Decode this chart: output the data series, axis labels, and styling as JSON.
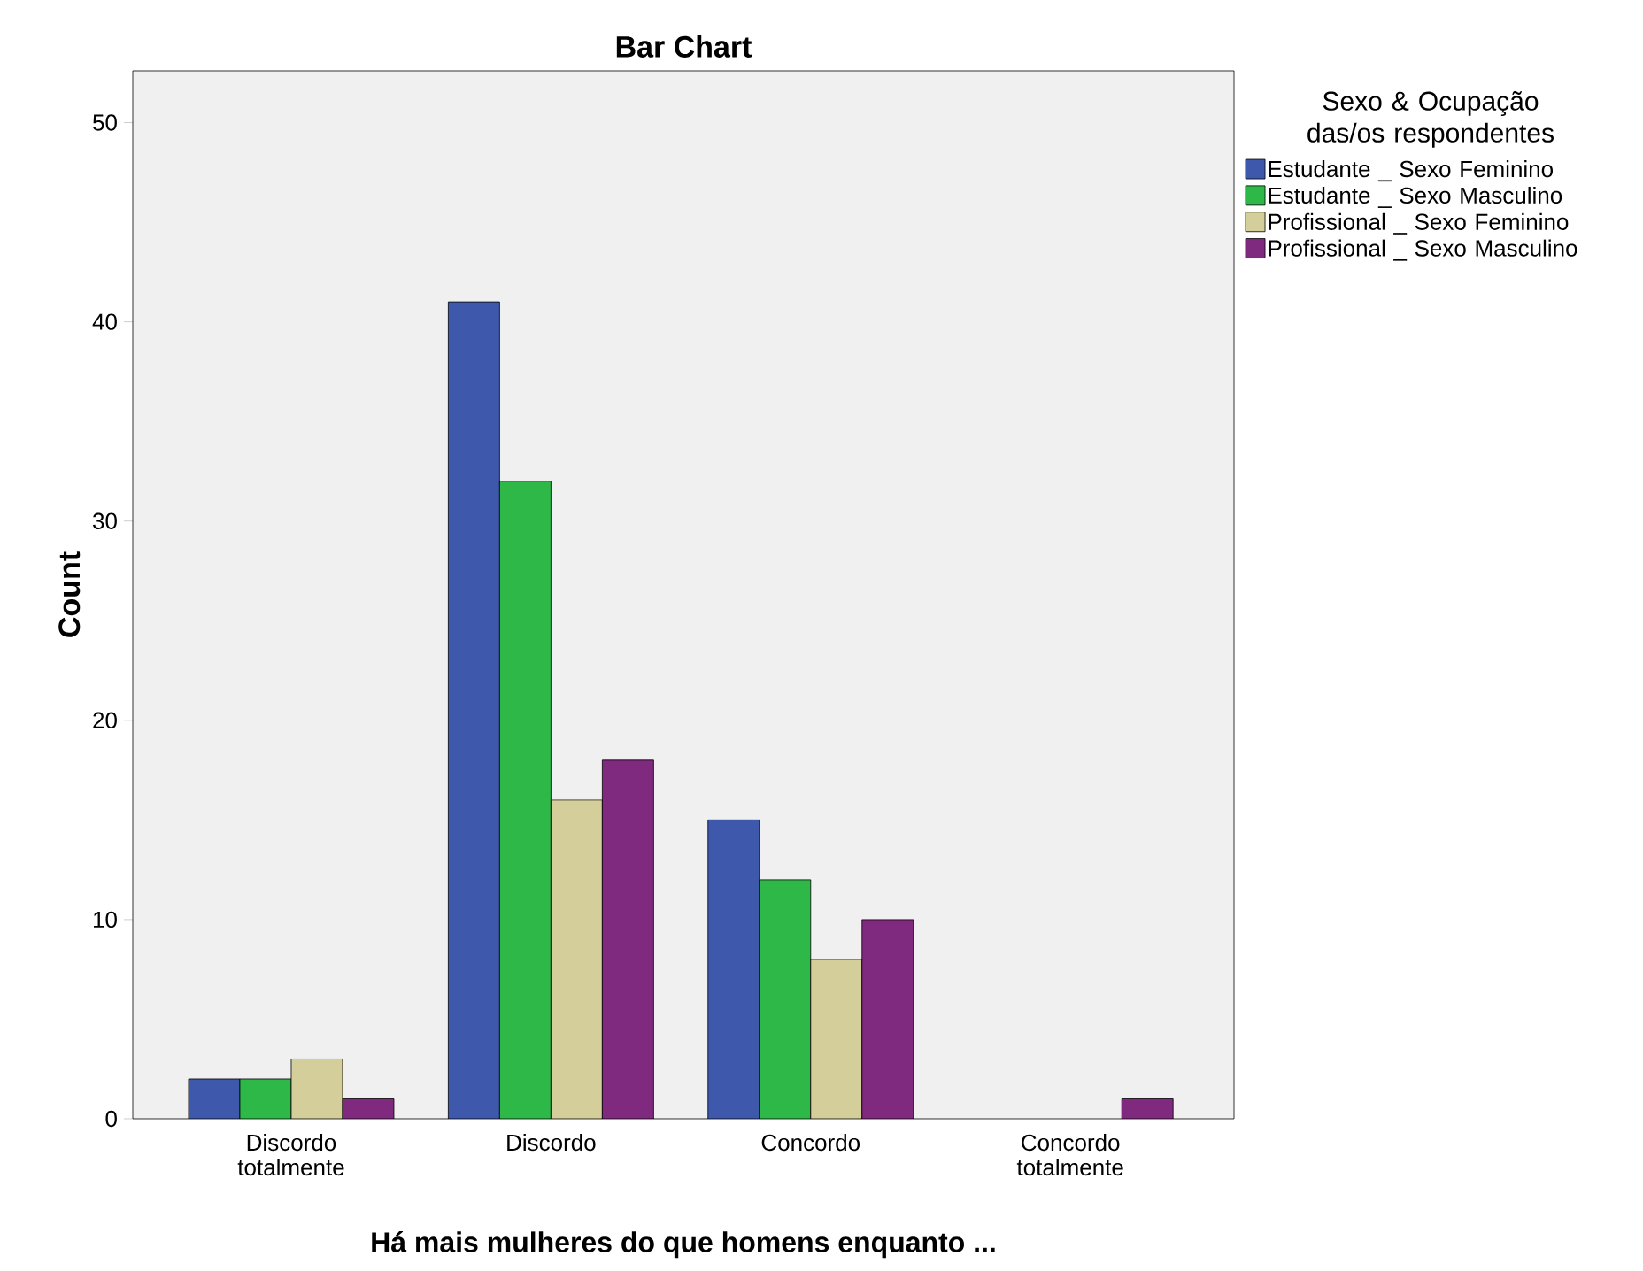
{
  "chart_data": {
    "type": "bar",
    "title": "Bar Chart",
    "xlabel": "Há mais mulheres do que homens enquanto ...",
    "ylabel": "Count",
    "legend_title": "Sexo & Ocupação das/os respondentes",
    "categories": [
      "Discordo totalmente",
      "Discordo",
      "Concordo",
      "Concordo totalmente"
    ],
    "series": [
      {
        "name": "Estudante _ Sexo Feminino",
        "color": "#3e58ac",
        "values": [
          2,
          41,
          15,
          null
        ]
      },
      {
        "name": "Estudante _ Sexo Masculino",
        "color": "#2eb848",
        "values": [
          2,
          32,
          12,
          null
        ]
      },
      {
        "name": "Profissional _ Sexo Feminino",
        "color": "#d4cf9a",
        "values": [
          3,
          16,
          8,
          null
        ]
      },
      {
        "name": "Profissional _ Sexo Masculino",
        "color": "#7f2a7e",
        "values": [
          1,
          18,
          10,
          1
        ]
      }
    ],
    "ylim": [
      0,
      52.6
    ],
    "yticks": [
      0,
      10,
      20,
      30,
      40,
      50
    ],
    "grid": false,
    "legend": "right"
  }
}
